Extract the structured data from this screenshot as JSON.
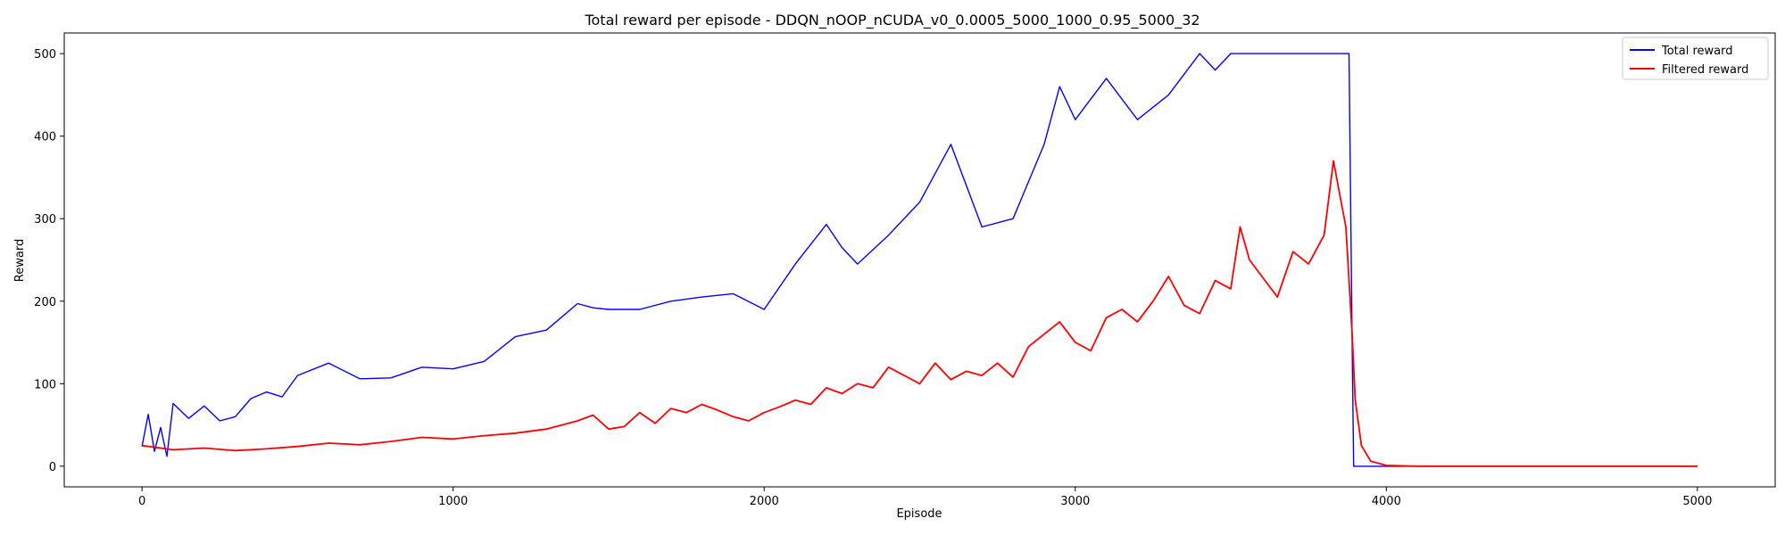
{
  "chart_data": {
    "type": "line",
    "title": "Total reward per episode - DDQN_nOOP_nCUDA_v0_0.0005_5000_1000_0.95_5000_32",
    "xlabel": "Episode",
    "ylabel": "Reward",
    "xlim": [
      -250,
      5250
    ],
    "ylim": [
      -25,
      525
    ],
    "xticks": [
      0,
      1000,
      2000,
      3000,
      4000,
      5000
    ],
    "yticks": [
      0,
      100,
      200,
      300,
      400,
      500
    ],
    "legend_position": "top-right",
    "grid": false,
    "series": [
      {
        "name": "Total reward",
        "color": "#0000ff",
        "x": [
          0,
          20,
          40,
          60,
          80,
          100,
          150,
          200,
          250,
          300,
          350,
          400,
          450,
          500,
          600,
          700,
          800,
          900,
          1000,
          1100,
          1200,
          1300,
          1400,
          1450,
          1500,
          1600,
          1700,
          1800,
          1900,
          2000,
          2100,
          2200,
          2250,
          2300,
          2400,
          2500,
          2600,
          2700,
          2800,
          2900,
          2950,
          3000,
          3100,
          3200,
          3300,
          3400,
          3450,
          3500,
          3600,
          3700,
          3750,
          3800,
          3850,
          3880,
          3890,
          3895,
          4000,
          4500,
          5000
        ],
        "y": [
          24,
          63,
          18,
          47,
          12,
          76,
          58,
          73,
          55,
          60,
          82,
          90,
          84,
          110,
          125,
          106,
          107,
          120,
          118,
          127,
          157,
          165,
          197,
          192,
          190,
          190,
          200,
          205,
          209,
          190,
          245,
          293,
          265,
          245,
          280,
          320,
          390,
          290,
          300,
          390,
          460,
          420,
          470,
          420,
          450,
          500,
          480,
          500,
          500,
          500,
          500,
          500,
          500,
          500,
          150,
          0,
          0,
          0,
          0
        ]
      },
      {
        "name": "Filtered reward",
        "color": "#ff0000",
        "x": [
          0,
          100,
          200,
          300,
          400,
          500,
          600,
          700,
          800,
          900,
          1000,
          1100,
          1200,
          1300,
          1400,
          1450,
          1500,
          1550,
          1600,
          1650,
          1700,
          1750,
          1800,
          1850,
          1900,
          1950,
          2000,
          2050,
          2100,
          2150,
          2200,
          2250,
          2300,
          2350,
          2400,
          2450,
          2500,
          2550,
          2600,
          2650,
          2700,
          2750,
          2800,
          2850,
          2900,
          2950,
          3000,
          3050,
          3100,
          3150,
          3200,
          3250,
          3300,
          3350,
          3400,
          3450,
          3500,
          3530,
          3560,
          3600,
          3650,
          3700,
          3750,
          3800,
          3830,
          3850,
          3870,
          3890,
          3900,
          3920,
          3950,
          4000,
          4100,
          4500,
          5000
        ],
        "y": [
          25,
          20,
          22,
          19,
          21,
          24,
          28,
          26,
          30,
          35,
          33,
          37,
          40,
          45,
          55,
          62,
          45,
          48,
          65,
          52,
          70,
          65,
          75,
          68,
          60,
          55,
          65,
          72,
          80,
          75,
          95,
          88,
          100,
          95,
          120,
          110,
          100,
          125,
          105,
          115,
          110,
          125,
          108,
          145,
          160,
          175,
          150,
          140,
          180,
          190,
          175,
          200,
          230,
          195,
          185,
          225,
          215,
          290,
          250,
          230,
          205,
          260,
          245,
          280,
          370,
          330,
          290,
          160,
          80,
          25,
          6,
          1,
          0,
          0,
          0
        ]
      }
    ]
  }
}
